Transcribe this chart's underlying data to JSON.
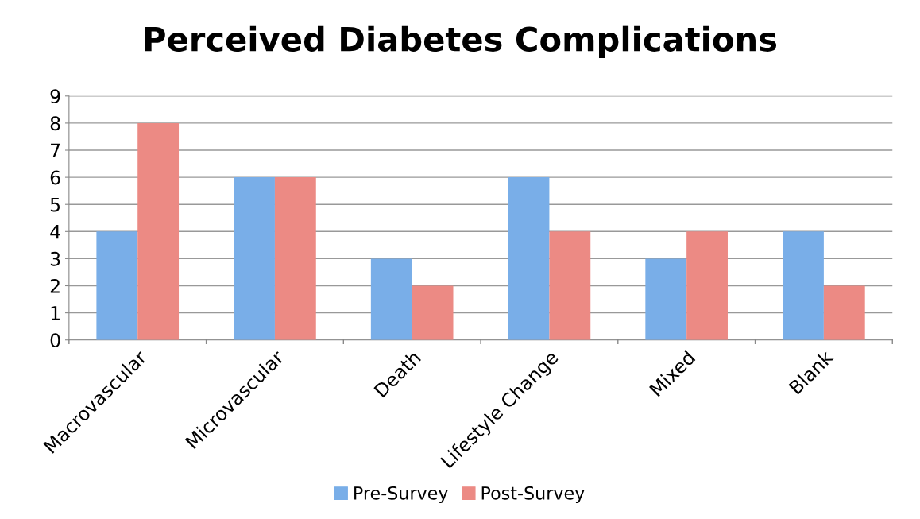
{
  "chart_data": {
    "type": "bar",
    "title": "Perceived Diabetes Complications",
    "categories": [
      "Macrovascular",
      "Microvascular",
      "Death",
      "Lifestyle Change",
      "Mixed",
      "Blank"
    ],
    "series": [
      {
        "name": "Pre-Survey",
        "color": "#79aee8",
        "values": [
          4,
          6,
          3,
          6,
          3,
          4
        ]
      },
      {
        "name": "Post-Survey",
        "color": "#ec8a84",
        "values": [
          8,
          6,
          2,
          4,
          4,
          2
        ]
      }
    ],
    "ylim": [
      0,
      9
    ],
    "yticks": [
      0,
      1,
      2,
      3,
      4,
      5,
      6,
      7,
      8,
      9
    ],
    "grid": "y",
    "legend": "bottom"
  }
}
